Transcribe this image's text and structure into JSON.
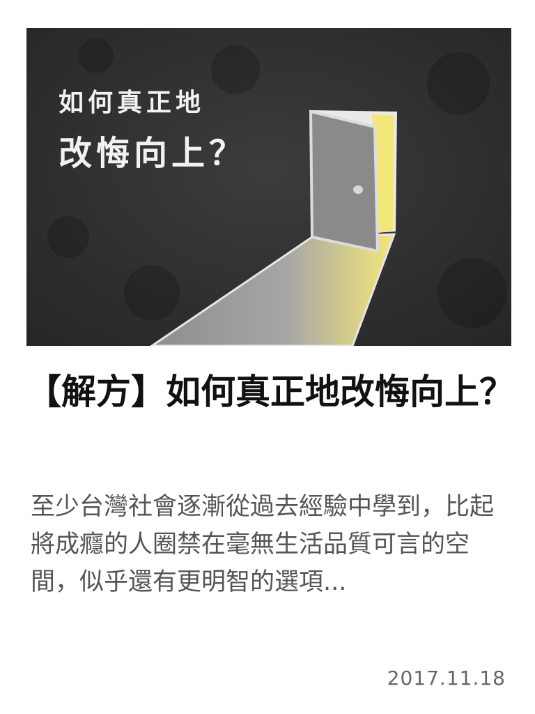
{
  "article": {
    "image_line1": "如何真正地",
    "image_line2": "改悔向上？",
    "title": "【解方】如何真正地改悔向上？",
    "summary": "至少台灣社會逐漸從過去經驗中學到，比起將成癮的人圈禁在毫無生活品質可言的空間，似乎還有更明智的選項...",
    "date": "2017.11.18"
  },
  "colors": {
    "wall": "#2f2f2f",
    "door": "#8a8a8a",
    "light": "#f3e77a",
    "floor_light": "#9c9c9c"
  }
}
